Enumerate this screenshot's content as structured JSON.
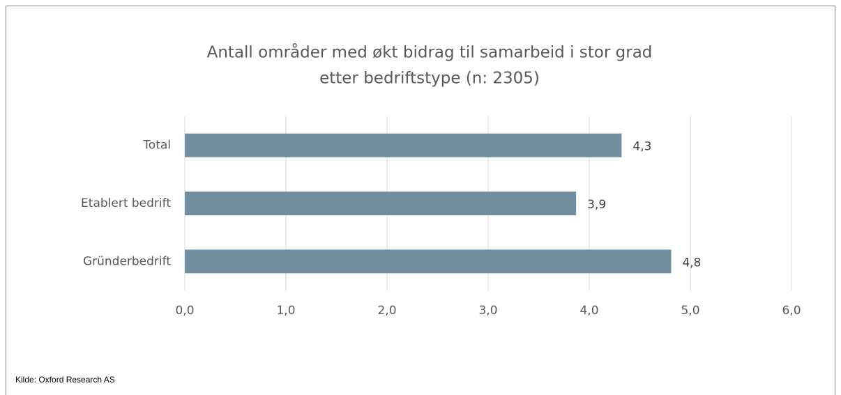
{
  "chart_data": {
    "type": "hbar",
    "title": [
      "Antall områder med økt bidrag til samarbeid i stor grad",
      "etter bedriftstype (n: 2305)"
    ],
    "categories": [
      "Total",
      "Etablert bedrift",
      "Gründerbedrift"
    ],
    "values": [
      4.32,
      3.87,
      4.81
    ],
    "value_labels": [
      "4,3",
      "3,9",
      "4,8"
    ],
    "color": "#728fa0",
    "xlim": [
      0,
      6
    ],
    "xticks": [
      {
        "value": 0,
        "label": "0,0"
      },
      {
        "value": 1,
        "label": "1,0"
      },
      {
        "value": 2,
        "label": "2,0"
      },
      {
        "value": 3,
        "label": "3,0"
      },
      {
        "value": 4,
        "label": "4,0"
      },
      {
        "value": 5,
        "label": "5,0"
      },
      {
        "value": 6,
        "label": "6,0"
      }
    ],
    "grid": true,
    "source": "Kilde: Oxford Research AS"
  }
}
